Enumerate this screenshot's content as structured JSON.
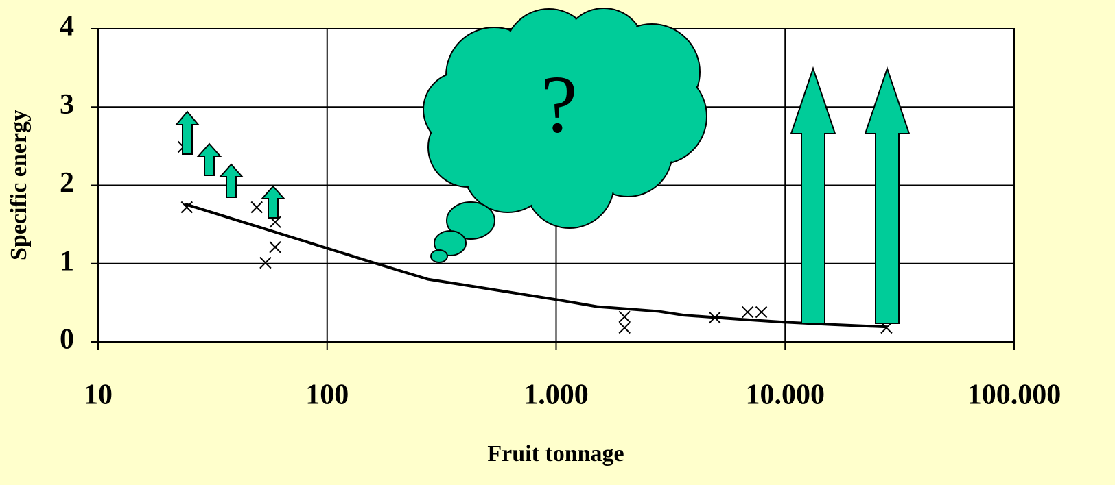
{
  "chart_data": {
    "type": "scatter",
    "x_label": "Fruit tonnage",
    "y_label": "Specific energy",
    "annotation": "?",
    "xscale": "log",
    "xlim": [
      10,
      100000
    ],
    "xticks": [
      10,
      100,
      {
        "value": 1000,
        "label": "1.000"
      },
      {
        "value": 10000,
        "label": "10.000"
      },
      {
        "value": 100000,
        "label": "100.000"
      }
    ],
    "ylim": [
      0,
      4
    ],
    "yticks": [
      0,
      1,
      2,
      3,
      4
    ],
    "grid": true,
    "series": [
      {
        "type": "scatter",
        "color": "#000000",
        "x": [
          23.6,
          24.4,
          49.3,
          59.3,
          53.8,
          59.3,
          1990,
          1990,
          4930,
          6860,
          7870,
          27700
        ],
        "values": [
          2.49,
          1.72,
          1.72,
          1.53,
          1.01,
          1.21,
          0.32,
          0.18,
          0.31,
          0.38,
          0.38,
          0.18
        ]
      },
      {
        "type": "line",
        "color": "#000000",
        "x": [
          24,
          164,
          275,
          1000,
          1510,
          2800,
          3610,
          6270,
          10100,
          16200,
          28000
        ],
        "values": [
          1.76,
          1.0,
          0.8,
          0.54,
          0.45,
          0.39,
          0.34,
          0.29,
          0.25,
          0.22,
          0.19
        ]
      }
    ]
  }
}
